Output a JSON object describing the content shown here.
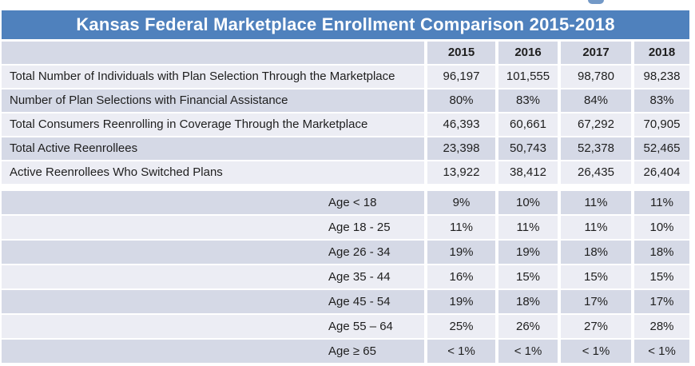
{
  "title": "Kansas Federal Marketplace Enrollment Comparison 2015-2018",
  "colors": {
    "title_bar_blue": "#4f81bd",
    "title_text": "#ffffff",
    "row_dark": "#d5d9e6",
    "row_light": "#ecedf4",
    "body_text": "#1e1e1e"
  },
  "chart_data": {
    "type": "table",
    "title": "Kansas Federal Marketplace Enrollment Comparison 2015-2018",
    "columns": [
      "",
      "2015",
      "2016",
      "2017",
      "2018"
    ],
    "rows": [
      {
        "label": "Total Number of Individuals with Plan Selection Through the Marketplace",
        "values": [
          "96,197",
          "101,555",
          "98,780",
          "98,238"
        ]
      },
      {
        "label": "Number of Plan Selections with Financial Assistance",
        "values": [
          "80%",
          "83%",
          "84%",
          "83%"
        ]
      },
      {
        "label": "Total Consumers Reenrolling in Coverage Through the Marketplace",
        "values": [
          "46,393",
          "60,661",
          "67,292",
          "70,905"
        ]
      },
      {
        "label": "Total Active Reenrollees",
        "values": [
          "23,398",
          "50,743",
          "52,378",
          "52,465"
        ]
      },
      {
        "label": "Active Reenrollees Who Switched Plans",
        "values": [
          "13,922",
          "38,412",
          "26,435",
          "26,404"
        ]
      },
      {
        "label": "Age < 18",
        "values": [
          "9%",
          "10%",
          "11%",
          "11%"
        ]
      },
      {
        "label": "Age 18 - 25",
        "values": [
          "11%",
          "11%",
          "11%",
          "10%"
        ]
      },
      {
        "label": "Age 26 - 34",
        "values": [
          "19%",
          "19%",
          "18%",
          "18%"
        ]
      },
      {
        "label": "Age 35 - 44",
        "values": [
          "16%",
          "15%",
          "15%",
          "15%"
        ]
      },
      {
        "label": "Age 45 - 54",
        "values": [
          "19%",
          "18%",
          "17%",
          "17%"
        ]
      },
      {
        "label": "Age 55 – 64",
        "values": [
          "25%",
          "26%",
          "27%",
          "28%"
        ]
      },
      {
        "label": "Age ≥ 65",
        "values": [
          "< 1%",
          "< 1%",
          "< 1%",
          "< 1%"
        ]
      }
    ]
  }
}
